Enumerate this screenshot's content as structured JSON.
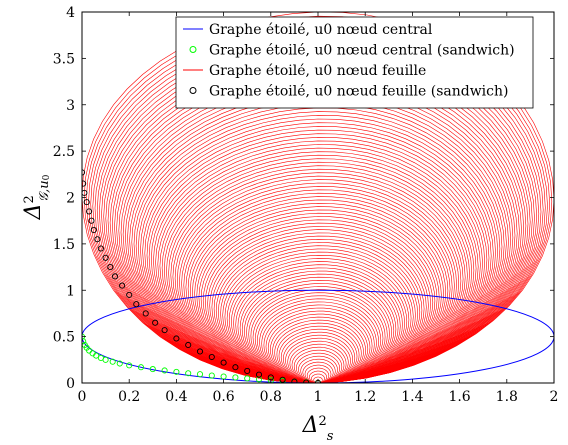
{
  "chart_data": {
    "type": "line",
    "xlim": [
      0,
      2
    ],
    "ylim": [
      0,
      4
    ],
    "x_ticks": [
      "0",
      "0.2",
      "0.4",
      "0.6",
      "0.8",
      "1",
      "1.2",
      "1.4",
      "1.6",
      "1.8",
      "2"
    ],
    "y_ticks": [
      "0",
      "0.5",
      "1",
      "1.5",
      "2",
      "2.5",
      "3",
      "3.5",
      "4"
    ],
    "xlabel": "Δ²_s",
    "ylabel": "Δ²_{G,u0}",
    "grid": false,
    "legend_position": "top-right",
    "series": [
      {
        "name": "Graphe étoilé, u0 nœud central",
        "style": "line",
        "color": "#0000ff",
        "shape": "ellipse",
        "center": [
          1,
          0.5
        ],
        "semi_axes": [
          1,
          0.5
        ]
      },
      {
        "name": "Graphe étoilé, u0 nœud central (sandwich)",
        "style": "circle-markers",
        "color": "#00ff00",
        "points": [
          [
            0,
            0.5
          ],
          [
            0.005,
            0.45
          ],
          [
            0.012,
            0.41
          ],
          [
            0.02,
            0.38
          ],
          [
            0.03,
            0.35
          ],
          [
            0.045,
            0.32
          ],
          [
            0.06,
            0.295
          ],
          [
            0.08,
            0.27
          ],
          [
            0.1,
            0.25
          ],
          [
            0.13,
            0.23
          ],
          [
            0.16,
            0.21
          ],
          [
            0.2,
            0.19
          ],
          [
            0.25,
            0.17
          ],
          [
            0.3,
            0.15
          ],
          [
            0.35,
            0.135
          ],
          [
            0.4,
            0.12
          ],
          [
            0.45,
            0.105
          ],
          [
            0.5,
            0.095
          ],
          [
            0.55,
            0.08
          ],
          [
            0.6,
            0.07
          ],
          [
            0.65,
            0.06
          ],
          [
            0.7,
            0.05
          ],
          [
            0.75,
            0.04
          ],
          [
            0.8,
            0.03
          ],
          [
            0.85,
            0.022
          ],
          [
            0.9,
            0.014
          ],
          [
            0.95,
            0.007
          ],
          [
            1,
            0
          ]
        ]
      },
      {
        "name": "Graphe étoilé, u0 nœud feuille",
        "style": "line",
        "color": "#ff0000",
        "shape": "dense family of closed curves starting at (1, 0) and reaching up to y ≈ 4, covering x from 0 to 2"
      },
      {
        "name": "Graphe étoilé, u0 nœud feuille (sandwich)",
        "style": "circle-markers",
        "color": "#000000",
        "points": [
          [
            0,
            2.27
          ],
          [
            0.005,
            2.15
          ],
          [
            0.01,
            2.05
          ],
          [
            0.02,
            1.95
          ],
          [
            0.03,
            1.85
          ],
          [
            0.04,
            1.75
          ],
          [
            0.05,
            1.65
          ],
          [
            0.065,
            1.55
          ],
          [
            0.08,
            1.45
          ],
          [
            0.1,
            1.35
          ],
          [
            0.12,
            1.25
          ],
          [
            0.14,
            1.15
          ],
          [
            0.17,
            1.05
          ],
          [
            0.2,
            0.95
          ],
          [
            0.23,
            0.85
          ],
          [
            0.27,
            0.75
          ],
          [
            0.31,
            0.65
          ],
          [
            0.35,
            0.57
          ],
          [
            0.4,
            0.48
          ],
          [
            0.45,
            0.41
          ],
          [
            0.5,
            0.34
          ],
          [
            0.55,
            0.28
          ],
          [
            0.6,
            0.22
          ],
          [
            0.65,
            0.17
          ],
          [
            0.7,
            0.13
          ],
          [
            0.75,
            0.09
          ],
          [
            0.8,
            0.06
          ],
          [
            0.85,
            0.035
          ],
          [
            0.9,
            0.015
          ],
          [
            0.95,
            0.005
          ],
          [
            1,
            0
          ]
        ]
      }
    ],
    "legend": [
      {
        "label": "Graphe étoilé, u0 nœud central",
        "color": "#0000ff",
        "style": "line"
      },
      {
        "label": "Graphe étoilé, u0 nœud central (sandwich)",
        "color": "#00ff00",
        "style": "marker"
      },
      {
        "label": "Graphe étoilé, u0 nœud feuille",
        "color": "#ff0000",
        "style": "line"
      },
      {
        "label": "Graphe étoilé, u0 nœud feuille (sandwich)",
        "color": "#000000",
        "style": "marker"
      }
    ]
  }
}
